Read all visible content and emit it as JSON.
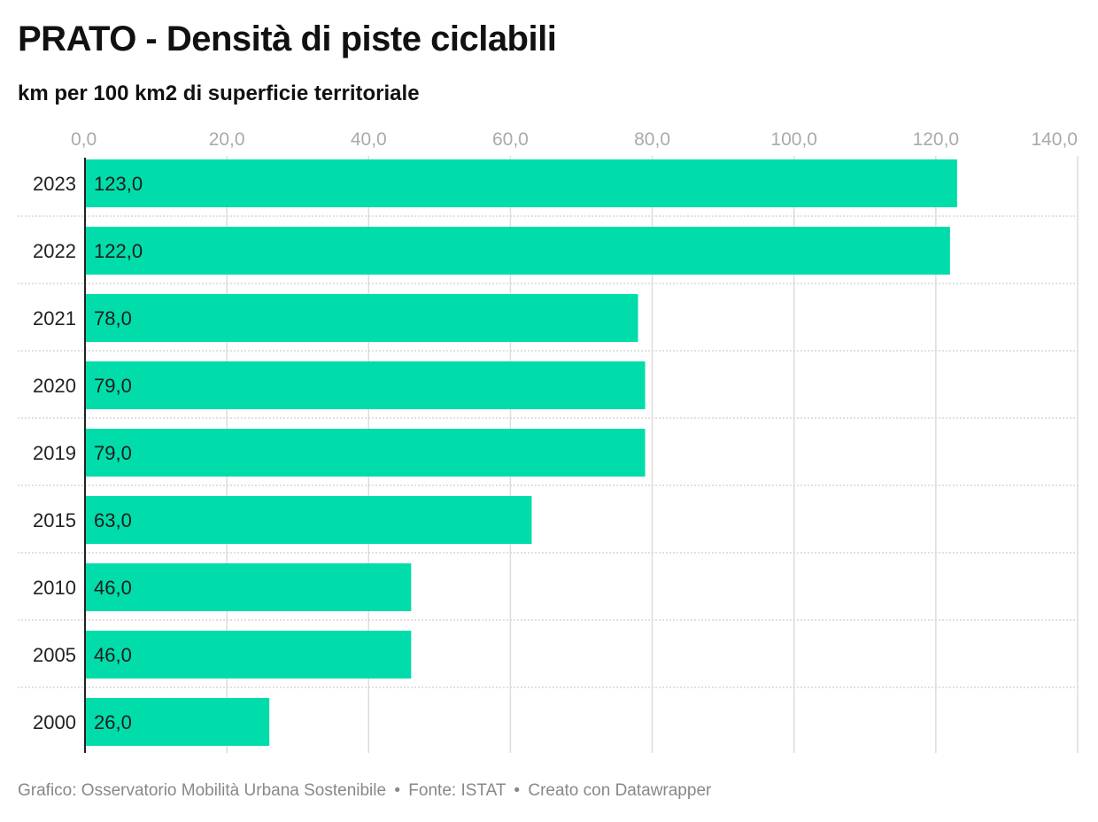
{
  "chart_data": {
    "type": "bar",
    "orientation": "horizontal",
    "title": "PRATO - Densità di piste ciclabili",
    "subtitle": "km per 100 km2 di superficie territoriale",
    "categories": [
      "2023",
      "2022",
      "2021",
      "2020",
      "2019",
      "2015",
      "2010",
      "2005",
      "2000"
    ],
    "values": [
      123.0,
      122.0,
      78.0,
      79.0,
      79.0,
      63.0,
      46.0,
      46.0,
      26.0
    ],
    "value_labels": [
      "123,0",
      "122,0",
      "78,0",
      "79,0",
      "79,0",
      "63,0",
      "46,0",
      "46,0",
      "26,0"
    ],
    "xlim": [
      0,
      140
    ],
    "x_ticks": [
      0,
      20,
      40,
      60,
      80,
      100,
      120,
      140
    ],
    "x_tick_labels": [
      "0,0",
      "20,0",
      "40,0",
      "60,0",
      "80,0",
      "100,0",
      "120,0",
      "140,0"
    ],
    "x_axis_position": "top",
    "grid": true,
    "bar_color": "#00dcaa"
  },
  "footer": {
    "chart_credit": "Grafico: Osservatorio Mobilità Urbana Sostenibile",
    "source": "Fonte: ISTAT",
    "tool": "Creato con Datawrapper",
    "separator": "•"
  }
}
